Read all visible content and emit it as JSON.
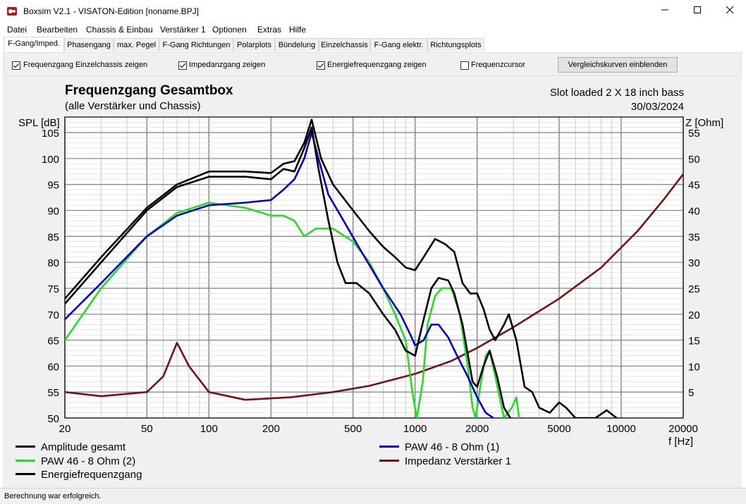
{
  "window": {
    "title": "Boxsim V2.1 - VISATON-Edition [noname.BPJ]"
  },
  "menu": [
    "Datei",
    "Bearbeiten",
    "Chassis & Einbau",
    "Verstärker 1",
    "Optionen",
    "Extras",
    "Hilfe"
  ],
  "tabs": [
    "F-Gang/Imped.",
    "Phasengang",
    "max. Pegel",
    "F-Gang Richtungen",
    "Polarplots",
    "Bündelung",
    "Einzelchassis",
    "F-Gang elektr.",
    "Richtungsplots"
  ],
  "active_tab": 0,
  "options": {
    "chk1": {
      "label": "Frequenzgang Einzelchassis zeigen",
      "checked": true
    },
    "chk2": {
      "label": "Impedanzgang zeigen",
      "checked": true
    },
    "chk3": {
      "label": "Energiefrequenzgang zeigen",
      "checked": true
    },
    "chk4": {
      "label": "Frequenzcursor",
      "checked": false
    },
    "button": "Vergleichskurven einblenden"
  },
  "status": "Berechnung war erfolgreich.",
  "chart_data": {
    "type": "line",
    "title": "Frequenzgang Gesamtbox",
    "subtitle": "(alle Verstärker und Chassis)",
    "annotation_right": [
      "Slot loaded 2 X 18 inch bass",
      "30/03/2024"
    ],
    "x_label": "f [Hz]",
    "y_left_label": "SPL [dB]",
    "y_right_label": "Z [Ohm]",
    "x_scale": "log",
    "xlim": [
      20,
      20000
    ],
    "ylim_left": [
      50,
      108
    ],
    "ylim_right": [
      0,
      58
    ],
    "x_ticks": [
      20,
      50,
      100,
      200,
      500,
      1000,
      2000,
      5000,
      10000,
      20000
    ],
    "x_tick_labels": [
      "20",
      "50",
      "100",
      "200",
      "500",
      "1000",
      "2000",
      "5000",
      "10000",
      "20000"
    ],
    "y_left_ticks": [
      50,
      55,
      60,
      65,
      70,
      75,
      80,
      85,
      90,
      95,
      100,
      105
    ],
    "y_right_ticks": [
      5,
      10,
      15,
      20,
      25,
      30,
      35,
      40,
      45,
      50,
      55
    ],
    "grid": true,
    "legend_position": "bottom",
    "series": [
      {
        "name": "Amplitude gesamt",
        "color": "#000000",
        "axis": "left",
        "points": [
          [
            20,
            72
          ],
          [
            30,
            80
          ],
          [
            50,
            90
          ],
          [
            70,
            94.5
          ],
          [
            100,
            96.5
          ],
          [
            150,
            96.5
          ],
          [
            200,
            96
          ],
          [
            230,
            98
          ],
          [
            260,
            97.5
          ],
          [
            290,
            102
          ],
          [
            315,
            106
          ],
          [
            340,
            98
          ],
          [
            380,
            88
          ],
          [
            420,
            80
          ],
          [
            460,
            76
          ],
          [
            520,
            76
          ],
          [
            600,
            74
          ],
          [
            700,
            70
          ],
          [
            800,
            67
          ],
          [
            900,
            63
          ],
          [
            1000,
            62
          ],
          [
            1100,
            69
          ],
          [
            1200,
            75
          ],
          [
            1300,
            77
          ],
          [
            1450,
            76.5
          ],
          [
            1550,
            74
          ],
          [
            1700,
            68
          ],
          [
            1900,
            57
          ],
          [
            2000,
            56
          ],
          [
            2150,
            60
          ],
          [
            2300,
            63
          ],
          [
            2500,
            58
          ],
          [
            2700,
            52
          ],
          [
            2900,
            50
          ]
        ]
      },
      {
        "name": "PAW 46 - 8 Ohm (1)",
        "color": "#0000cc",
        "axis": "left",
        "points": [
          [
            20,
            69
          ],
          [
            30,
            76
          ],
          [
            50,
            85
          ],
          [
            70,
            89
          ],
          [
            100,
            91
          ],
          [
            150,
            91.5
          ],
          [
            200,
            92
          ],
          [
            230,
            94
          ],
          [
            260,
            96
          ],
          [
            290,
            100
          ],
          [
            315,
            105
          ],
          [
            340,
            100
          ],
          [
            380,
            93
          ],
          [
            450,
            88
          ],
          [
            550,
            82
          ],
          [
            700,
            75
          ],
          [
            850,
            70
          ],
          [
            950,
            66
          ],
          [
            1000,
            64
          ],
          [
            1100,
            65
          ],
          [
            1200,
            68
          ],
          [
            1300,
            68
          ],
          [
            1450,
            65.5
          ],
          [
            1600,
            62
          ],
          [
            1800,
            58
          ],
          [
            2000,
            54
          ],
          [
            2200,
            51
          ],
          [
            2400,
            50
          ]
        ]
      },
      {
        "name": "PAW 46 - 8 Ohm (2)",
        "color": "#22dd22",
        "axis": "left",
        "points": [
          [
            20,
            65
          ],
          [
            30,
            75
          ],
          [
            50,
            85
          ],
          [
            70,
            89.5
          ],
          [
            100,
            91.5
          ],
          [
            150,
            90.5
          ],
          [
            200,
            89
          ],
          [
            230,
            89
          ],
          [
            260,
            88
          ],
          [
            290,
            85
          ],
          [
            330,
            86.5
          ],
          [
            400,
            86.5
          ],
          [
            500,
            84
          ],
          [
            600,
            80
          ],
          [
            700,
            75
          ],
          [
            800,
            70
          ],
          [
            900,
            65
          ],
          [
            970,
            55
          ],
          [
            1020,
            50
          ],
          [
            1090,
            57
          ],
          [
            1150,
            68
          ],
          [
            1250,
            73.5
          ],
          [
            1350,
            75
          ],
          [
            1500,
            75
          ],
          [
            1650,
            70
          ],
          [
            1800,
            60
          ],
          [
            1900,
            52
          ],
          [
            1970,
            50
          ],
          [
            2070,
            56
          ],
          [
            2200,
            62
          ],
          [
            2300,
            63
          ],
          [
            2450,
            58
          ],
          [
            2700,
            50
          ],
          [
            2950,
            52
          ],
          [
            3100,
            54
          ],
          [
            3200,
            50
          ]
        ]
      },
      {
        "name": "Impedanz Verstärker 1",
        "color": "#7a1010",
        "axis": "right",
        "points": [
          [
            20,
            5
          ],
          [
            30,
            4.2
          ],
          [
            50,
            5
          ],
          [
            60,
            8
          ],
          [
            70,
            14.5
          ],
          [
            80,
            10
          ],
          [
            100,
            5
          ],
          [
            150,
            3.5
          ],
          [
            250,
            4
          ],
          [
            400,
            5
          ],
          [
            600,
            6.2
          ],
          [
            1000,
            8.5
          ],
          [
            1500,
            11
          ],
          [
            2000,
            13.5
          ],
          [
            3000,
            17.5
          ],
          [
            5000,
            23
          ],
          [
            8000,
            29
          ],
          [
            12000,
            36
          ],
          [
            16000,
            42
          ],
          [
            20000,
            47
          ]
        ]
      },
      {
        "name": "Energiefrequenzgang",
        "color": "#000000",
        "axis": "left",
        "points": [
          [
            20,
            73
          ],
          [
            30,
            81
          ],
          [
            50,
            90.5
          ],
          [
            70,
            95
          ],
          [
            100,
            97.5
          ],
          [
            150,
            97.5
          ],
          [
            200,
            97.2
          ],
          [
            230,
            99
          ],
          [
            260,
            99.5
          ],
          [
            290,
            103
          ],
          [
            315,
            107.5
          ],
          [
            350,
            100
          ],
          [
            400,
            95
          ],
          [
            500,
            90
          ],
          [
            600,
            86
          ],
          [
            700,
            83
          ],
          [
            800,
            81
          ],
          [
            900,
            79
          ],
          [
            1000,
            78.5
          ],
          [
            1100,
            81
          ],
          [
            1250,
            84.5
          ],
          [
            1400,
            83.5
          ],
          [
            1550,
            82
          ],
          [
            1700,
            76
          ],
          [
            1850,
            74
          ],
          [
            2000,
            74
          ],
          [
            2150,
            71
          ],
          [
            2300,
            67
          ],
          [
            2450,
            65
          ],
          [
            2700,
            68
          ],
          [
            2850,
            70
          ],
          [
            3100,
            65
          ],
          [
            3400,
            56
          ],
          [
            3700,
            55
          ],
          [
            4000,
            52
          ],
          [
            4500,
            51
          ],
          [
            5000,
            53
          ],
          [
            5400,
            52
          ],
          [
            6000,
            50
          ],
          [
            7500,
            50
          ],
          [
            8500,
            51.5
          ],
          [
            9500,
            50
          ]
        ]
      }
    ]
  }
}
